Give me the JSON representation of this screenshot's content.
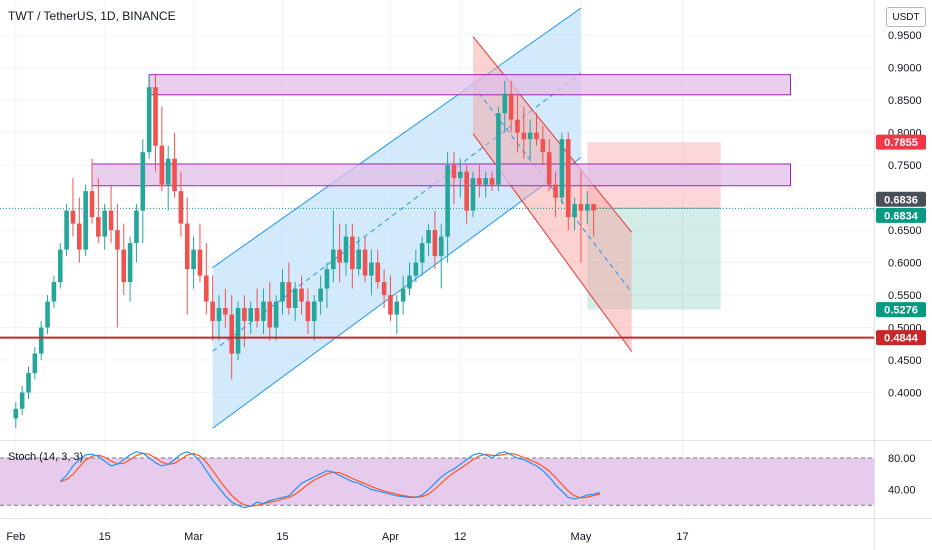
{
  "chart_title": "TWT / TetherUS, 1D, BINANCE",
  "currency": "USDT",
  "indicator_label": "Stoch (14, 3, 3)",
  "colors": {
    "up": "#26a69a",
    "down": "#ef5350",
    "channel_fill": "#bbdefb",
    "channel_line": "#2196f3",
    "zone_fill": "#e1bee7",
    "zone_line": "#9c27b0",
    "support_line": "#c62828",
    "stoch_k": "#2196f3",
    "stoch_d": "#ff5722"
  },
  "chart_data": {
    "type": "candlestick",
    "x_ticks": [
      "Feb",
      "15",
      "Mar",
      "15",
      "Apr",
      "12",
      "May",
      "17"
    ],
    "y_ticks": [
      "0.9500",
      "0.9000",
      "0.8500",
      "0.8000",
      "0.7500",
      "0.6500",
      "0.6000",
      "0.5500",
      "0.5000",
      "0.4500",
      "0.4000"
    ],
    "ylim": [
      0.345,
      0.992
    ],
    "candles": [
      {
        "d": "Feb 1",
        "o": 0.36,
        "h": 0.385,
        "l": 0.345,
        "c": 0.375
      },
      {
        "d": "Feb 2",
        "o": 0.375,
        "h": 0.41,
        "l": 0.365,
        "c": 0.4
      },
      {
        "d": "Feb 3",
        "o": 0.4,
        "h": 0.44,
        "l": 0.39,
        "c": 0.43
      },
      {
        "d": "Feb 4",
        "o": 0.43,
        "h": 0.47,
        "l": 0.42,
        "c": 0.46
      },
      {
        "d": "Feb 5",
        "o": 0.46,
        "h": 0.51,
        "l": 0.45,
        "c": 0.5
      },
      {
        "d": "Feb 6",
        "o": 0.5,
        "h": 0.55,
        "l": 0.49,
        "c": 0.54
      },
      {
        "d": "Feb 7",
        "o": 0.54,
        "h": 0.58,
        "l": 0.53,
        "c": 0.57
      },
      {
        "d": "Feb 8",
        "o": 0.57,
        "h": 0.63,
        "l": 0.56,
        "c": 0.62
      },
      {
        "d": "Feb 9",
        "o": 0.62,
        "h": 0.69,
        "l": 0.61,
        "c": 0.68
      },
      {
        "d": "Feb 10",
        "o": 0.68,
        "h": 0.73,
        "l": 0.64,
        "c": 0.66
      },
      {
        "d": "Feb 11",
        "o": 0.66,
        "h": 0.7,
        "l": 0.6,
        "c": 0.62
      },
      {
        "d": "Feb 12",
        "o": 0.62,
        "h": 0.72,
        "l": 0.61,
        "c": 0.71
      },
      {
        "d": "Feb 13",
        "o": 0.71,
        "h": 0.76,
        "l": 0.66,
        "c": 0.67
      },
      {
        "d": "Feb 14",
        "o": 0.67,
        "h": 0.73,
        "l": 0.63,
        "c": 0.64
      },
      {
        "d": "Feb 15",
        "o": 0.64,
        "h": 0.69,
        "l": 0.62,
        "c": 0.68
      },
      {
        "d": "Feb 16",
        "o": 0.68,
        "h": 0.72,
        "l": 0.63,
        "c": 0.65
      },
      {
        "d": "Feb 17",
        "o": 0.65,
        "h": 0.69,
        "l": 0.5,
        "c": 0.62
      },
      {
        "d": "Feb 18",
        "o": 0.62,
        "h": 0.66,
        "l": 0.55,
        "c": 0.57
      },
      {
        "d": "Feb 19",
        "o": 0.57,
        "h": 0.64,
        "l": 0.54,
        "c": 0.63
      },
      {
        "d": "Feb 20",
        "o": 0.63,
        "h": 0.69,
        "l": 0.6,
        "c": 0.68
      },
      {
        "d": "Feb 21",
        "o": 0.68,
        "h": 0.79,
        "l": 0.63,
        "c": 0.77
      },
      {
        "d": "Feb 22",
        "o": 0.77,
        "h": 0.89,
        "l": 0.76,
        "c": 0.87
      },
      {
        "d": "Feb 23",
        "o": 0.87,
        "h": 0.89,
        "l": 0.74,
        "c": 0.78
      },
      {
        "d": "Feb 24",
        "o": 0.78,
        "h": 0.84,
        "l": 0.71,
        "c": 0.72
      },
      {
        "d": "Feb 25",
        "o": 0.72,
        "h": 0.78,
        "l": 0.68,
        "c": 0.76
      },
      {
        "d": "Feb 26",
        "o": 0.76,
        "h": 0.8,
        "l": 0.7,
        "c": 0.71
      },
      {
        "d": "Feb 27",
        "o": 0.71,
        "h": 0.74,
        "l": 0.64,
        "c": 0.66
      },
      {
        "d": "Feb 28",
        "o": 0.66,
        "h": 0.7,
        "l": 0.52,
        "c": 0.59
      },
      {
        "d": "Mar 1",
        "o": 0.59,
        "h": 0.64,
        "l": 0.56,
        "c": 0.62
      },
      {
        "d": "Mar 2",
        "o": 0.62,
        "h": 0.66,
        "l": 0.57,
        "c": 0.58
      },
      {
        "d": "Mar 3",
        "o": 0.58,
        "h": 0.63,
        "l": 0.52,
        "c": 0.54
      },
      {
        "d": "Mar 4",
        "o": 0.54,
        "h": 0.58,
        "l": 0.48,
        "c": 0.51
      },
      {
        "d": "Mar 5",
        "o": 0.51,
        "h": 0.55,
        "l": 0.48,
        "c": 0.53
      },
      {
        "d": "Mar 6",
        "o": 0.53,
        "h": 0.56,
        "l": 0.5,
        "c": 0.52
      },
      {
        "d": "Mar 7",
        "o": 0.52,
        "h": 0.55,
        "l": 0.42,
        "c": 0.46
      },
      {
        "d": "Mar 8",
        "o": 0.46,
        "h": 0.54,
        "l": 0.45,
        "c": 0.53
      },
      {
        "d": "Mar 9",
        "o": 0.53,
        "h": 0.55,
        "l": 0.47,
        "c": 0.51
      },
      {
        "d": "Mar 10",
        "o": 0.51,
        "h": 0.54,
        "l": 0.49,
        "c": 0.53
      },
      {
        "d": "Mar 11",
        "o": 0.53,
        "h": 0.56,
        "l": 0.5,
        "c": 0.51
      },
      {
        "d": "Mar 12",
        "o": 0.51,
        "h": 0.56,
        "l": 0.49,
        "c": 0.54
      },
      {
        "d": "Mar 13",
        "o": 0.54,
        "h": 0.57,
        "l": 0.48,
        "c": 0.5
      },
      {
        "d": "Mar 14",
        "o": 0.5,
        "h": 0.55,
        "l": 0.48,
        "c": 0.54
      },
      {
        "d": "Mar 15",
        "o": 0.54,
        "h": 0.59,
        "l": 0.52,
        "c": 0.57
      },
      {
        "d": "Mar 16",
        "o": 0.57,
        "h": 0.6,
        "l": 0.52,
        "c": 0.53
      },
      {
        "d": "Mar 17",
        "o": 0.53,
        "h": 0.57,
        "l": 0.51,
        "c": 0.56
      },
      {
        "d": "Mar 18",
        "o": 0.56,
        "h": 0.58,
        "l": 0.52,
        "c": 0.54
      },
      {
        "d": "Mar 19",
        "o": 0.54,
        "h": 0.56,
        "l": 0.49,
        "c": 0.51
      },
      {
        "d": "Mar 20",
        "o": 0.51,
        "h": 0.55,
        "l": 0.48,
        "c": 0.54
      },
      {
        "d": "Mar 21",
        "o": 0.54,
        "h": 0.58,
        "l": 0.52,
        "c": 0.56
      },
      {
        "d": "Mar 22",
        "o": 0.56,
        "h": 0.6,
        "l": 0.53,
        "c": 0.59
      },
      {
        "d": "Mar 23",
        "o": 0.59,
        "h": 0.68,
        "l": 0.57,
        "c": 0.62
      },
      {
        "d": "Mar 24",
        "o": 0.62,
        "h": 0.66,
        "l": 0.57,
        "c": 0.6
      },
      {
        "d": "Mar 25",
        "o": 0.6,
        "h": 0.66,
        "l": 0.58,
        "c": 0.64
      },
      {
        "d": "Mar 26",
        "o": 0.64,
        "h": 0.66,
        "l": 0.56,
        "c": 0.59
      },
      {
        "d": "Mar 27",
        "o": 0.59,
        "h": 0.64,
        "l": 0.58,
        "c": 0.62
      },
      {
        "d": "Mar 28",
        "o": 0.62,
        "h": 0.64,
        "l": 0.57,
        "c": 0.58
      },
      {
        "d": "Mar 29",
        "o": 0.58,
        "h": 0.62,
        "l": 0.55,
        "c": 0.6
      },
      {
        "d": "Mar 30",
        "o": 0.6,
        "h": 0.62,
        "l": 0.56,
        "c": 0.57
      },
      {
        "d": "Mar 31",
        "o": 0.57,
        "h": 0.59,
        "l": 0.53,
        "c": 0.55
      },
      {
        "d": "Apr 1",
        "o": 0.55,
        "h": 0.58,
        "l": 0.51,
        "c": 0.52
      },
      {
        "d": "Apr 2",
        "o": 0.52,
        "h": 0.55,
        "l": 0.49,
        "c": 0.54
      },
      {
        "d": "Apr 3",
        "o": 0.54,
        "h": 0.58,
        "l": 0.52,
        "c": 0.56
      },
      {
        "d": "Apr 4",
        "o": 0.56,
        "h": 0.6,
        "l": 0.55,
        "c": 0.58
      },
      {
        "d": "Apr 5",
        "o": 0.58,
        "h": 0.62,
        "l": 0.57,
        "c": 0.6
      },
      {
        "d": "Apr 6",
        "o": 0.6,
        "h": 0.64,
        "l": 0.58,
        "c": 0.63
      },
      {
        "d": "Apr 7",
        "o": 0.63,
        "h": 0.66,
        "l": 0.61,
        "c": 0.65
      },
      {
        "d": "Apr 8",
        "o": 0.65,
        "h": 0.68,
        "l": 0.59,
        "c": 0.61
      },
      {
        "d": "Apr 9",
        "o": 0.61,
        "h": 0.66,
        "l": 0.56,
        "c": 0.64
      },
      {
        "d": "Apr 10",
        "o": 0.64,
        "h": 0.77,
        "l": 0.6,
        "c": 0.75
      },
      {
        "d": "Apr 11",
        "o": 0.75,
        "h": 0.77,
        "l": 0.69,
        "c": 0.73
      },
      {
        "d": "Apr 12",
        "o": 0.73,
        "h": 0.76,
        "l": 0.7,
        "c": 0.74
      },
      {
        "d": "Apr 13",
        "o": 0.74,
        "h": 0.75,
        "l": 0.66,
        "c": 0.68
      },
      {
        "d": "Apr 14",
        "o": 0.68,
        "h": 0.74,
        "l": 0.67,
        "c": 0.73
      },
      {
        "d": "Apr 15",
        "o": 0.73,
        "h": 0.75,
        "l": 0.7,
        "c": 0.72
      },
      {
        "d": "Apr 16",
        "o": 0.72,
        "h": 0.74,
        "l": 0.7,
        "c": 0.73
      },
      {
        "d": "Apr 17",
        "o": 0.73,
        "h": 0.74,
        "l": 0.71,
        "c": 0.72
      },
      {
        "d": "Apr 18",
        "o": 0.72,
        "h": 0.84,
        "l": 0.71,
        "c": 0.83
      },
      {
        "d": "Apr 19",
        "o": 0.83,
        "h": 0.88,
        "l": 0.8,
        "c": 0.86
      },
      {
        "d": "Apr 20",
        "o": 0.86,
        "h": 0.88,
        "l": 0.8,
        "c": 0.82
      },
      {
        "d": "Apr 21",
        "o": 0.82,
        "h": 0.86,
        "l": 0.77,
        "c": 0.8
      },
      {
        "d": "Apr 22",
        "o": 0.8,
        "h": 0.84,
        "l": 0.76,
        "c": 0.79
      },
      {
        "d": "Apr 23",
        "o": 0.79,
        "h": 0.82,
        "l": 0.76,
        "c": 0.8
      },
      {
        "d": "Apr 24",
        "o": 0.8,
        "h": 0.83,
        "l": 0.78,
        "c": 0.79
      },
      {
        "d": "Apr 25",
        "o": 0.79,
        "h": 0.81,
        "l": 0.75,
        "c": 0.77
      },
      {
        "d": "Apr 26",
        "o": 0.77,
        "h": 0.79,
        "l": 0.71,
        "c": 0.72
      },
      {
        "d": "Apr 27",
        "o": 0.72,
        "h": 0.74,
        "l": 0.67,
        "c": 0.7
      },
      {
        "d": "Apr 28",
        "o": 0.7,
        "h": 0.8,
        "l": 0.69,
        "c": 0.79
      },
      {
        "d": "Apr 29",
        "o": 0.79,
        "h": 0.8,
        "l": 0.65,
        "c": 0.67
      },
      {
        "d": "Apr 30",
        "o": 0.67,
        "h": 0.7,
        "l": 0.65,
        "c": 0.69
      },
      {
        "d": "May 1",
        "o": 0.69,
        "h": 0.74,
        "l": 0.6,
        "c": 0.68
      },
      {
        "d": "May 2",
        "o": 0.68,
        "h": 0.71,
        "l": 0.66,
        "c": 0.69
      },
      {
        "d": "May 3",
        "o": 0.69,
        "h": 0.69,
        "l": 0.64,
        "c": 0.68
      }
    ],
    "price_labels": [
      {
        "value": 0.7855,
        "text": "0.7855",
        "color": "#f23645"
      },
      {
        "value": 0.6836,
        "text": "0.6836",
        "color": "#4a4e58"
      },
      {
        "value": 0.6834,
        "text": "0.6834",
        "color": "#089981"
      },
      {
        "value": 0.5276,
        "text": "0.5276",
        "color": "#089981"
      },
      {
        "value": 0.4844,
        "text": "0.4844",
        "color": "#c62828"
      }
    ],
    "support_level": 0.4844,
    "last_price": 0.6834,
    "resistance_zones": [
      {
        "low": 0.8583,
        "high": 0.8893,
        "start": "Feb 22",
        "end": "Jun 3"
      },
      {
        "low": 0.7183,
        "high": 0.7518,
        "start": "Feb 13",
        "end": "Jun 3"
      }
    ],
    "ascending_channel": {
      "lower_start": {
        "d": "Mar 4",
        "p": 0.345
      },
      "lower_end": {
        "d": "May 1",
        "p": 0.7618
      },
      "upper_start": {
        "d": "Mar 4",
        "p": 0.5924
      },
      "upper_end": {
        "d": "May 1",
        "p": 0.9917
      },
      "mid_start": {
        "d": "Mar 4",
        "p": 0.4635
      },
      "mid_end": {
        "d": "May 1",
        "p": 0.8914
      }
    },
    "descending_channel": {
      "upper_start": {
        "d": "Apr 14",
        "p": 0.9479
      },
      "upper_end": {
        "d": "May 9",
        "p": 0.6467
      },
      "lower_start": {
        "d": "Apr 14",
        "p": 0.7984
      },
      "lower_end": {
        "d": "May 9",
        "p": 0.463
      },
      "mid_start": {
        "d": "Apr 14",
        "p": 0.8727
      },
      "mid_end": {
        "d": "May 9",
        "p": 0.5543
      }
    },
    "position": {
      "start": "May 2",
      "end": "May 23",
      "entry": 0.6836,
      "stop": 0.7855,
      "target": 0.5276
    },
    "stochastic": {
      "params": [
        14,
        3,
        3
      ],
      "upper": 80,
      "lower": 20,
      "y_ticks": [
        "80.00",
        "40.00"
      ],
      "k": [
        50,
        58,
        70,
        78,
        84,
        85,
        82,
        76,
        70,
        72,
        78,
        84,
        88,
        86,
        80,
        74,
        70,
        72,
        78,
        85,
        88,
        84,
        76,
        64,
        52,
        42,
        32,
        24,
        20,
        17,
        19,
        24,
        22,
        26,
        28,
        30,
        32,
        40,
        48,
        52,
        56,
        60,
        64,
        62,
        58,
        54,
        50,
        48,
        44,
        40,
        38,
        36,
        34,
        32,
        31,
        30,
        30,
        33,
        40,
        48,
        56,
        62,
        66,
        72,
        78,
        84,
        86,
        84,
        80,
        86,
        88,
        84,
        80,
        78,
        74,
        70,
        64,
        56,
        46,
        38,
        30,
        28,
        30,
        33,
        34,
        36
      ]
    }
  }
}
